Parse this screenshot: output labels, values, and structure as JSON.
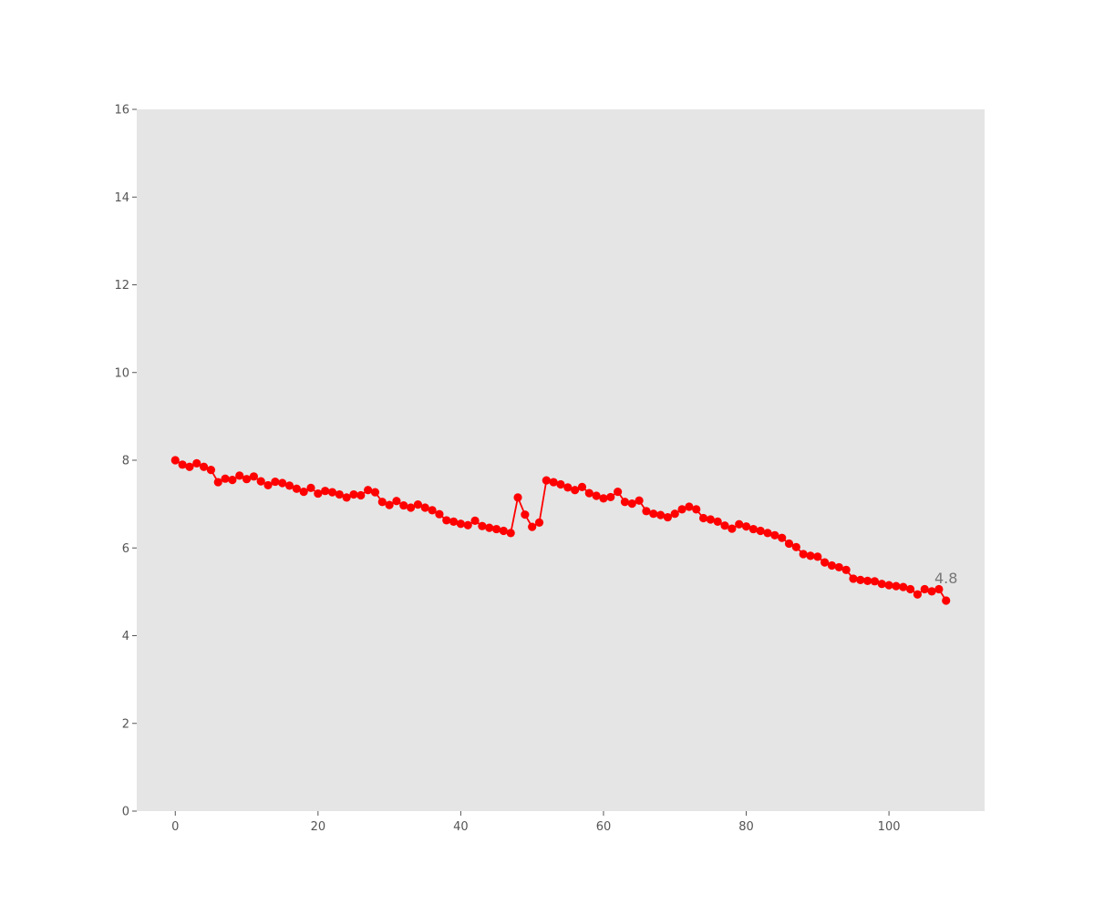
{
  "chart_data": {
    "type": "line",
    "title": "",
    "xlabel": "",
    "ylabel": "",
    "xlim": [
      -5.4,
      113.4
    ],
    "ylim": [
      0,
      16
    ],
    "x_ticks": [
      0,
      20,
      40,
      60,
      80,
      100
    ],
    "y_ticks": [
      0,
      2,
      4,
      6,
      8,
      10,
      12,
      14,
      16
    ],
    "grid": false,
    "legend": "none",
    "colors": {
      "plot_background": "#e5e5e5",
      "series": "#ff0000",
      "tick_text": "#555555",
      "annotation_text": "#777777"
    },
    "series": [
      {
        "x": [
          0,
          1,
          2,
          3,
          4,
          5,
          6,
          7,
          8,
          9,
          10,
          11,
          12,
          13,
          14,
          15,
          16,
          17,
          18,
          19,
          20,
          21,
          22,
          23,
          24,
          25,
          26,
          27,
          28,
          29,
          30,
          31,
          32,
          33,
          34,
          35,
          36,
          37,
          38,
          39,
          40,
          41,
          42,
          43,
          44,
          45,
          46,
          47,
          48,
          49,
          50,
          51,
          52,
          53,
          54,
          55,
          56,
          57,
          58,
          59,
          60,
          61,
          62,
          63,
          64,
          65,
          66,
          67,
          68,
          69,
          70,
          71,
          72,
          73,
          74,
          75,
          76,
          77,
          78,
          79,
          80,
          81,
          82,
          83,
          84,
          85,
          86,
          87,
          88,
          89,
          90,
          91,
          92,
          93,
          94,
          95,
          96,
          97,
          98,
          99,
          100,
          101,
          102,
          103,
          104,
          105,
          106,
          107,
          108
        ],
        "y": [
          8.0,
          7.9,
          7.85,
          7.93,
          7.85,
          7.78,
          7.5,
          7.58,
          7.55,
          7.65,
          7.57,
          7.63,
          7.52,
          7.43,
          7.51,
          7.48,
          7.42,
          7.35,
          7.28,
          7.37,
          7.24,
          7.3,
          7.27,
          7.22,
          7.15,
          7.22,
          7.2,
          7.32,
          7.27,
          7.05,
          6.98,
          7.07,
          6.97,
          6.92,
          6.99,
          6.92,
          6.86,
          6.77,
          6.63,
          6.6,
          6.55,
          6.52,
          6.62,
          6.5,
          6.46,
          6.43,
          6.39,
          6.34,
          7.15,
          6.76,
          6.48,
          6.58,
          7.54,
          7.5,
          7.45,
          7.38,
          7.32,
          7.39,
          7.25,
          7.19,
          7.13,
          7.16,
          7.28,
          7.05,
          7.01,
          7.08,
          6.84,
          6.78,
          6.75,
          6.7,
          6.78,
          6.88,
          6.94,
          6.88,
          6.68,
          6.65,
          6.6,
          6.51,
          6.44,
          6.54,
          6.49,
          6.43,
          6.39,
          6.34,
          6.29,
          6.23,
          6.1,
          6.02,
          5.86,
          5.82,
          5.8,
          5.67,
          5.6,
          5.56,
          5.5,
          5.3,
          5.27,
          5.25,
          5.24,
          5.18,
          5.15,
          5.13,
          5.11,
          5.06,
          4.94,
          5.06,
          5.01,
          5.06,
          4.8
        ]
      }
    ],
    "annotations": [
      {
        "x": 108,
        "y": 4.8,
        "text": "4.8"
      }
    ]
  }
}
